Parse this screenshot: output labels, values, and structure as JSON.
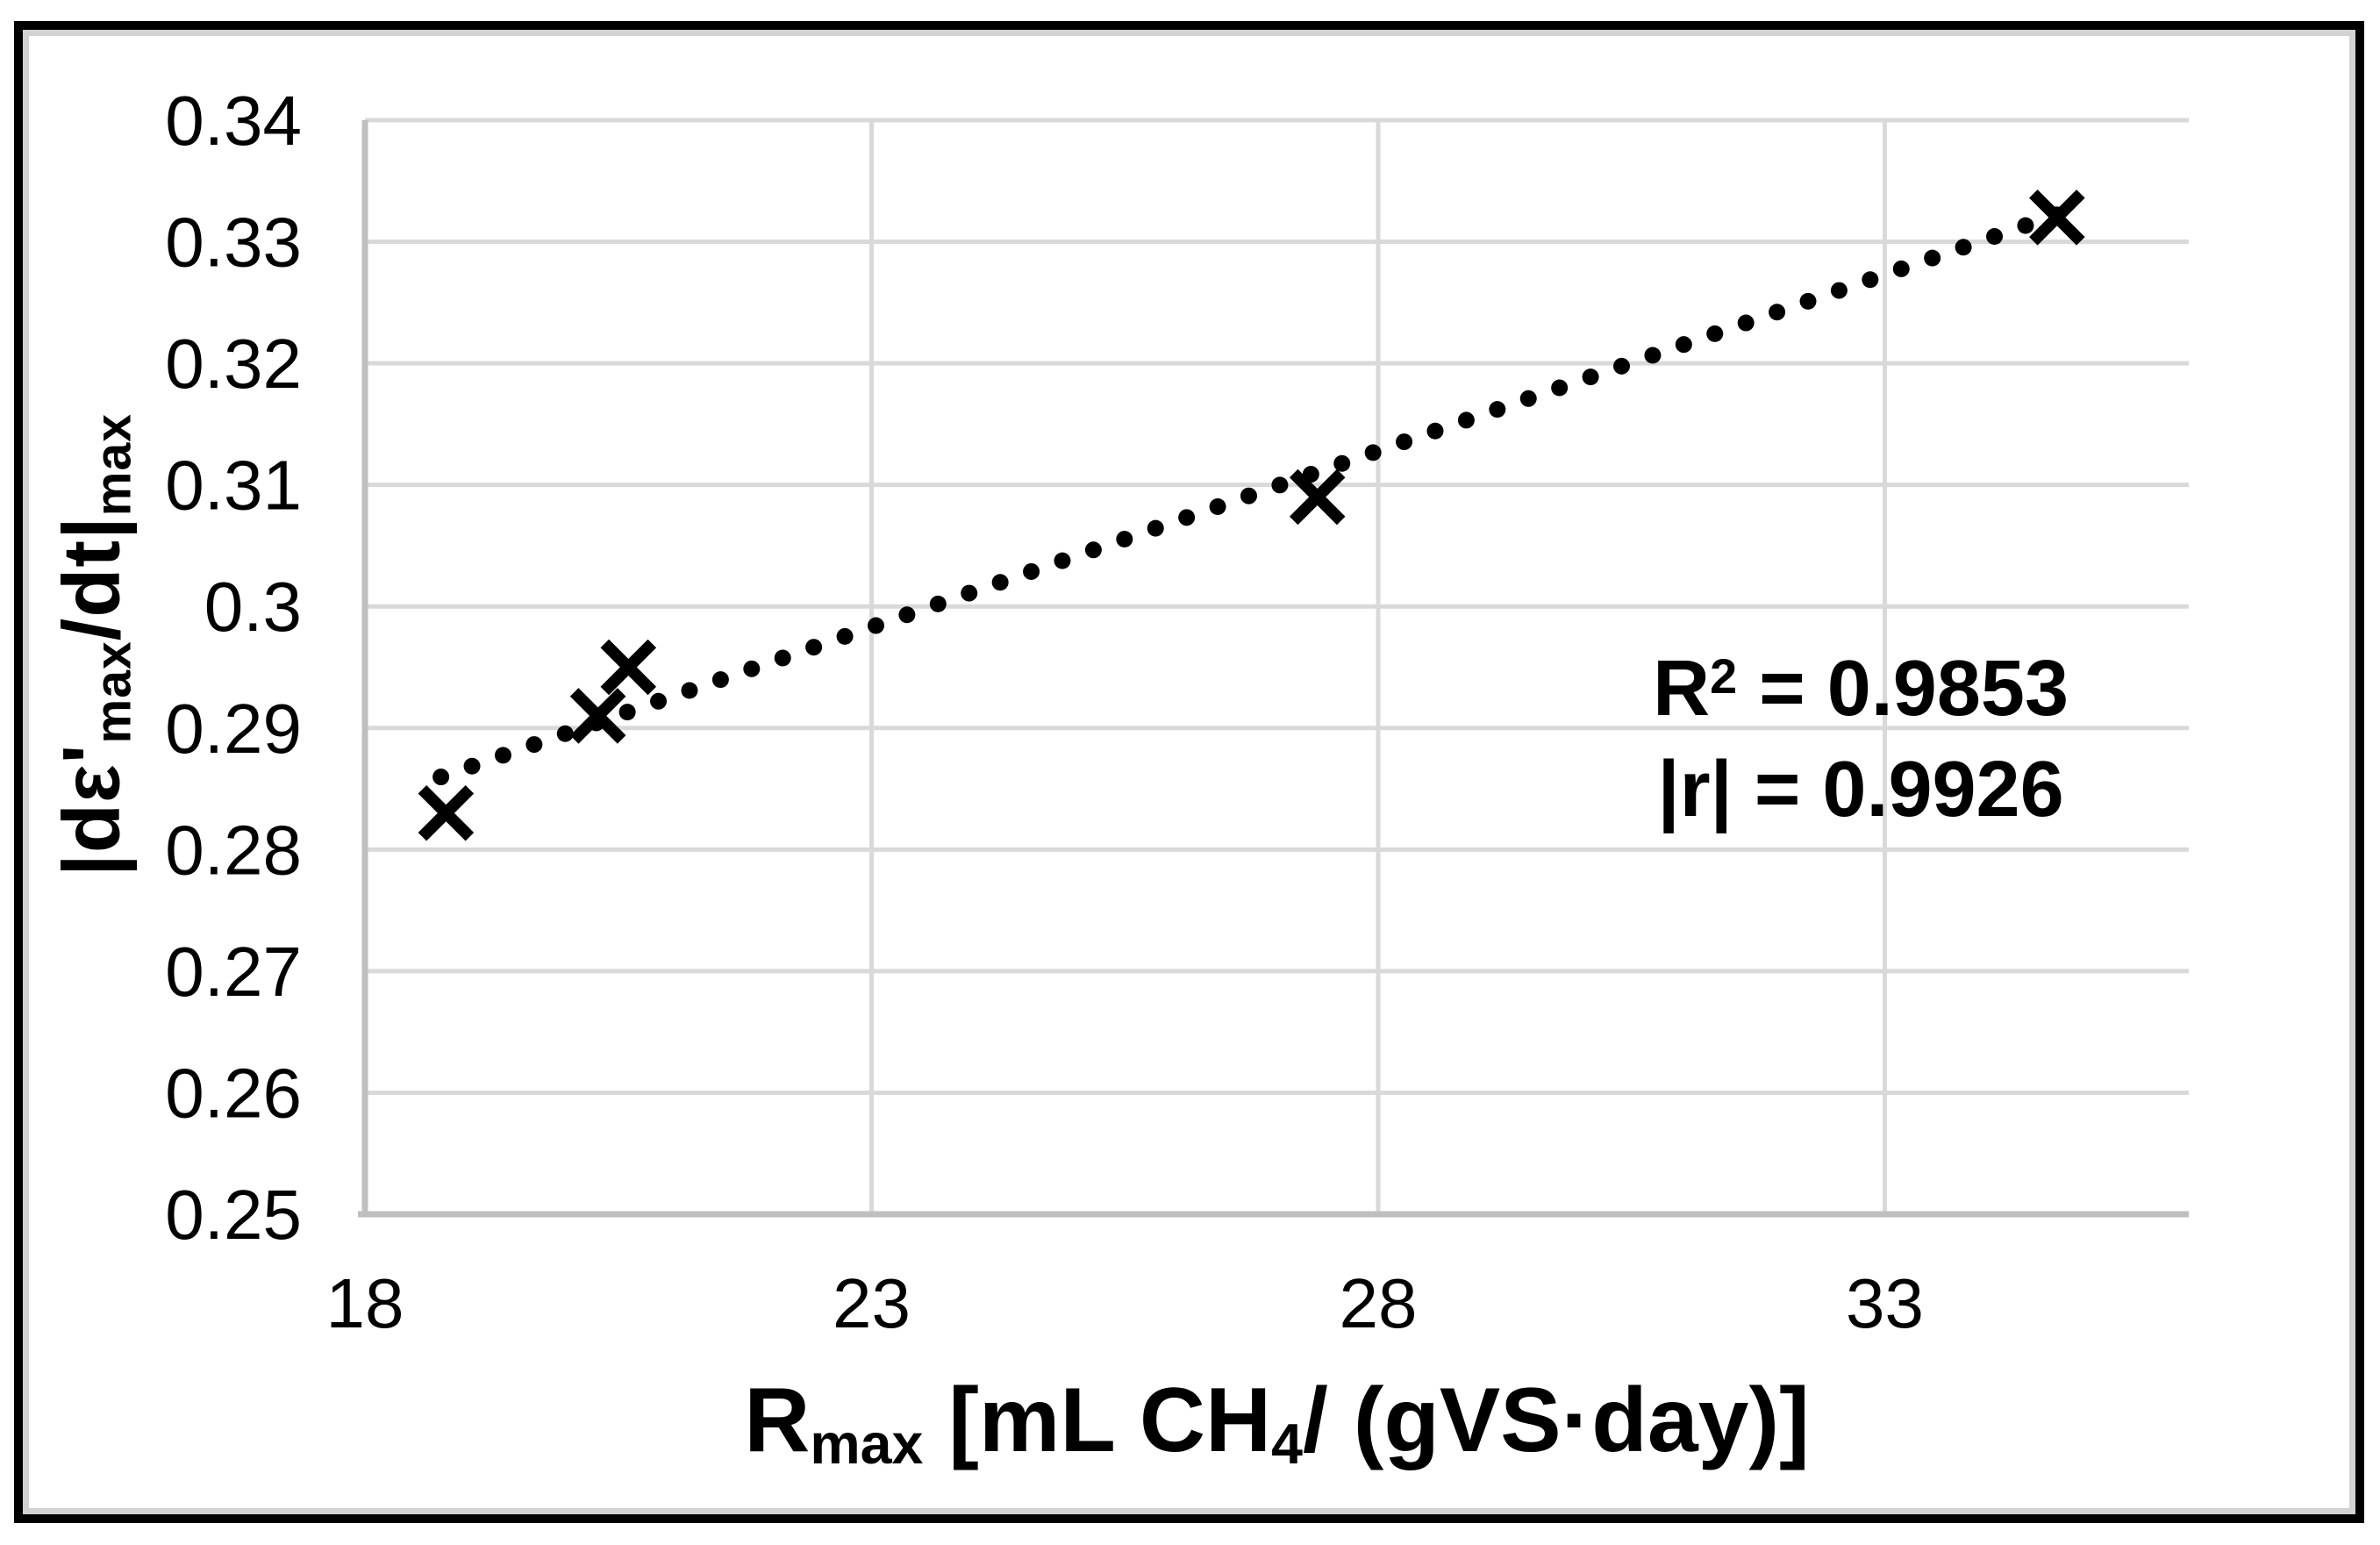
{
  "colors": {
    "background": "#FFFFFF",
    "gridline": "#D9D9D9",
    "axis_line": "#BFBFBF",
    "marker": "#000000",
    "trendline": "#000000",
    "text": "#000000",
    "frame_outer": "#000000",
    "frame_inner": "#D2D2D2"
  },
  "chart_data": {
    "type": "scatter",
    "title": "",
    "marker": "x",
    "grid": true,
    "legend": "none",
    "xlim": [
      18,
      36
    ],
    "ylim": [
      0.25,
      0.34
    ],
    "x_ticks": [
      18,
      23,
      28,
      33
    ],
    "x_tick_labels": [
      "18",
      "23",
      "28",
      "33"
    ],
    "y_ticks": [
      0.25,
      0.26,
      0.27,
      0.28,
      0.29,
      0.3,
      0.31,
      0.32,
      0.33,
      0.34
    ],
    "y_tick_labels": [
      "0.25",
      "0.26",
      "0.27",
      "0.28",
      "0.29",
      "0.3",
      "0.31",
      "0.32",
      "0.33",
      "0.34"
    ],
    "points": [
      {
        "x": 18.8,
        "y": 0.283
      },
      {
        "x": 20.3,
        "y": 0.291
      },
      {
        "x": 20.6,
        "y": 0.295
      },
      {
        "x": 27.4,
        "y": 0.309
      },
      {
        "x": 34.7,
        "y": 0.332
      }
    ],
    "trendline": {
      "style": "dotted",
      "slope": 0.0029,
      "intercept": 0.2316,
      "x_start": 18.75,
      "x_end": 34.78
    },
    "xlabel_parts": {
      "base": "R",
      "base_sub": "max",
      "unit_pre": " [mL CH",
      "unit_sub": "4",
      "unit_post": "/ (gVS·day)]"
    },
    "ylabel_parts": {
      "p1": "|dε'",
      "sub1": "max",
      "p2": "/dt|",
      "sub2": "max"
    },
    "xlabel_text": "Rmax [mL CH4/ (gVS·day)]",
    "ylabel_text": "|dε'max/dt|max",
    "annotation": {
      "line1_base": "R",
      "line1_sup": "2",
      "line1_rest": " = 0.9853",
      "line2": "|r| = 0.9926"
    }
  }
}
